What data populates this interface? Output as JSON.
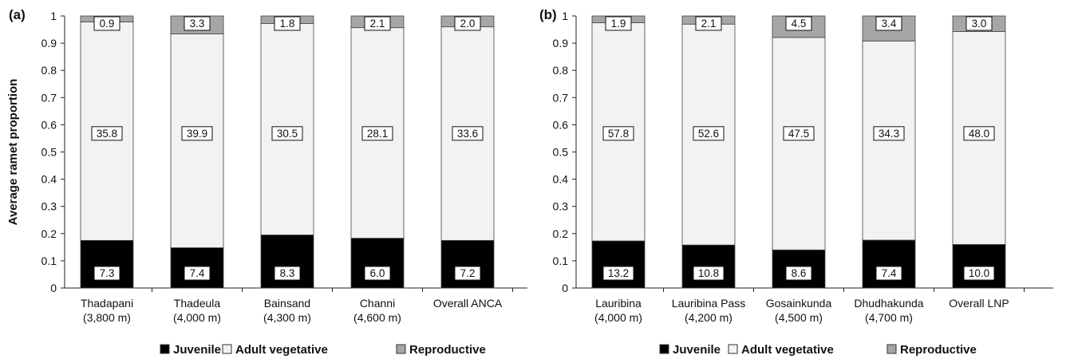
{
  "colors": {
    "juvenile": "#000000",
    "adult_vegetative": "#f2f2f2",
    "reproductive": "#a6a6a6"
  },
  "legend": {
    "juvenile": "Juvenile",
    "adult_vegetative": "Adult vegetative",
    "reproductive": "Reproductive"
  },
  "chart_data": [
    {
      "type": "bar",
      "stacked": true,
      "panel_label": "(a)",
      "ylabel": "Average ramet proportion",
      "ylim": [
        0,
        1
      ],
      "yticks": [
        "0",
        "0.1",
        "0.2",
        "0.3",
        "0.4",
        "0.5",
        "0.6",
        "0.7",
        "0.8",
        "0.9",
        "1"
      ],
      "categories": [
        [
          "Thadapani",
          "(3,800 m)"
        ],
        [
          "Thadeula",
          "(4,000 m)"
        ],
        [
          "Bainsand",
          "(4,300 m)"
        ],
        [
          "Channi",
          "(4,600 m)"
        ],
        [
          "Overall ANCA",
          ""
        ]
      ],
      "series": [
        {
          "name": "Juvenile",
          "key": "juvenile",
          "proportions": [
            0.175,
            0.148,
            0.195,
            0.183,
            0.175
          ],
          "labels": [
            "7.3",
            "7.4",
            "8.3",
            "6.0",
            "7.2"
          ]
        },
        {
          "name": "Adult vegetative",
          "key": "adult_vegetative",
          "proportions": [
            0.803,
            0.786,
            0.777,
            0.774,
            0.785
          ],
          "labels": [
            "35.8",
            "39.9",
            "30.5",
            "28.1",
            "33.6"
          ]
        },
        {
          "name": "Reproductive",
          "key": "reproductive",
          "proportions": [
            0.022,
            0.066,
            0.028,
            0.043,
            0.04
          ],
          "labels": [
            "0.9",
            "3.3",
            "1.8",
            "2.1",
            "2.0"
          ]
        }
      ],
      "legend_position": "bottom"
    },
    {
      "type": "bar",
      "stacked": true,
      "panel_label": "(b)",
      "ylabel": "",
      "ylim": [
        0,
        1
      ],
      "yticks": [
        "0",
        "0.1",
        "0.2",
        "0.3",
        "0.4",
        "0.5",
        "0.6",
        "0.7",
        "0.8",
        "0.9",
        "1"
      ],
      "categories": [
        [
          "Lauribina",
          "(4,000 m)"
        ],
        [
          "Lauribina Pass",
          "(4,200 m)"
        ],
        [
          "Gosainkunda",
          "(4,500 m)"
        ],
        [
          "Dhudhakunda",
          "(4,700 m)"
        ],
        [
          "Overall LNP",
          ""
        ]
      ],
      "series": [
        {
          "name": "Juvenile",
          "key": "juvenile",
          "proportions": [
            0.173,
            0.158,
            0.14,
            0.176,
            0.16
          ],
          "labels": [
            "13.2",
            "10.8",
            "8.6",
            "7.4",
            "10.0"
          ]
        },
        {
          "name": "Adult vegetative",
          "key": "adult_vegetative",
          "proportions": [
            0.802,
            0.812,
            0.781,
            0.732,
            0.783
          ],
          "labels": [
            "57.8",
            "52.6",
            "47.5",
            "34.3",
            "48.0"
          ]
        },
        {
          "name": "Reproductive",
          "key": "reproductive",
          "proportions": [
            0.025,
            0.03,
            0.079,
            0.092,
            0.057
          ],
          "labels": [
            "1.9",
            "2.1",
            "4.5",
            "3.4",
            "3.0"
          ]
        }
      ],
      "legend_position": "bottom"
    }
  ]
}
